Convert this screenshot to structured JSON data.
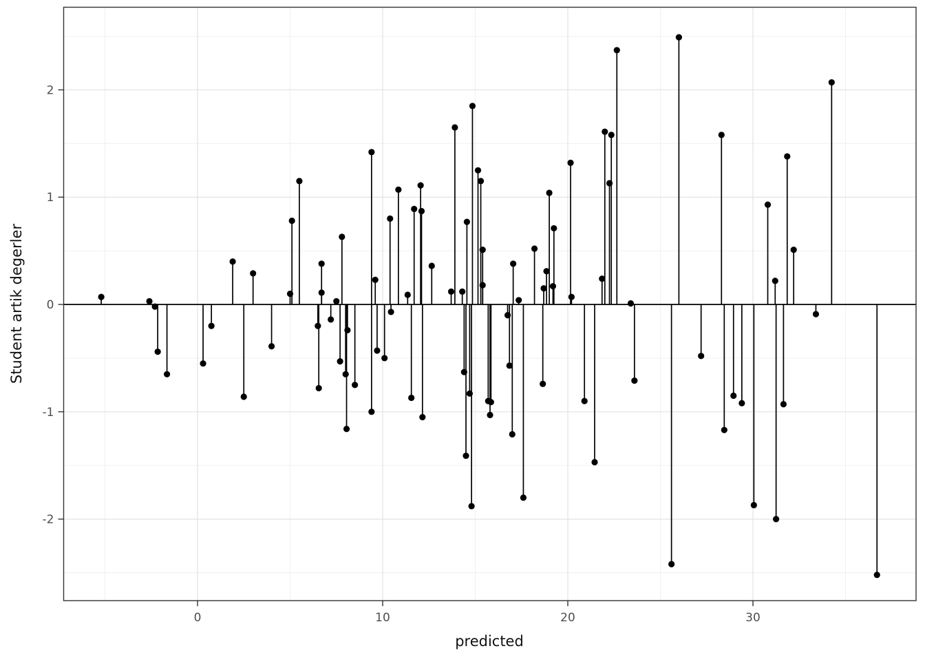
{
  "chart_data": {
    "type": "scatter",
    "subtype": "stem-lollipop-residual-plot",
    "title": "",
    "xlabel": "predicted",
    "ylabel": "Student artik degerler",
    "xlim": [
      -7.23,
      38.81
    ],
    "ylim": [
      -2.76,
      2.77
    ],
    "x_ticks": [
      0,
      10,
      20,
      30
    ],
    "y_ticks": [
      -2,
      -1,
      0,
      1,
      2
    ],
    "x_minor_gridlines": [
      -5,
      5,
      15,
      25,
      35
    ],
    "y_minor_gridlines": [
      -2.5,
      -1.5,
      -0.5,
      0.5,
      1.5,
      2.5
    ],
    "grid": "on",
    "legend": "none",
    "baseline_y": 0,
    "points": [
      [
        -5.2,
        0.07
      ],
      [
        -2.6,
        0.03
      ],
      [
        -2.3,
        -0.02
      ],
      [
        -2.15,
        -0.44
      ],
      [
        -1.65,
        -0.65
      ],
      [
        0.3,
        -0.55
      ],
      [
        0.75,
        -0.2
      ],
      [
        1.9,
        0.4
      ],
      [
        2.5,
        -0.86
      ],
      [
        3.0,
        0.29
      ],
      [
        4.0,
        -0.39
      ],
      [
        5.0,
        0.1
      ],
      [
        5.1,
        0.78
      ],
      [
        5.5,
        1.15
      ],
      [
        6.5,
        -0.2
      ],
      [
        6.55,
        -0.78
      ],
      [
        6.7,
        0.11
      ],
      [
        6.7,
        0.38
      ],
      [
        7.2,
        -0.14
      ],
      [
        7.5,
        0.03
      ],
      [
        7.7,
        -0.53
      ],
      [
        7.8,
        0.63
      ],
      [
        8.0,
        -0.65
      ],
      [
        8.05,
        -1.16
      ],
      [
        8.1,
        -0.24
      ],
      [
        8.5,
        -0.75
      ],
      [
        9.4,
        1.42
      ],
      [
        9.4,
        -1.0
      ],
      [
        9.6,
        0.23
      ],
      [
        9.7,
        -0.43
      ],
      [
        10.1,
        -0.5
      ],
      [
        10.4,
        0.8
      ],
      [
        10.45,
        -0.07
      ],
      [
        10.85,
        1.07
      ],
      [
        11.35,
        0.09
      ],
      [
        11.55,
        -0.87
      ],
      [
        11.7,
        0.89
      ],
      [
        12.05,
        1.11
      ],
      [
        12.1,
        0.87
      ],
      [
        12.15,
        -1.05
      ],
      [
        12.65,
        0.36
      ],
      [
        13.7,
        0.12
      ],
      [
        13.9,
        1.65
      ],
      [
        14.3,
        0.12
      ],
      [
        14.4,
        -0.63
      ],
      [
        14.5,
        -1.41
      ],
      [
        14.55,
        0.77
      ],
      [
        14.7,
        -0.83
      ],
      [
        14.8,
        -1.88
      ],
      [
        14.85,
        1.85
      ],
      [
        15.15,
        1.25
      ],
      [
        15.3,
        1.15
      ],
      [
        15.4,
        0.51
      ],
      [
        15.4,
        0.18
      ],
      [
        15.7,
        -0.9
      ],
      [
        15.8,
        -1.03
      ],
      [
        15.85,
        -0.91
      ],
      [
        16.75,
        -0.1
      ],
      [
        16.85,
        -0.57
      ],
      [
        17.0,
        -1.21
      ],
      [
        17.05,
        0.38
      ],
      [
        17.35,
        0.04
      ],
      [
        17.6,
        -1.8
      ],
      [
        18.2,
        0.52
      ],
      [
        18.65,
        -0.74
      ],
      [
        18.7,
        0.15
      ],
      [
        18.85,
        0.31
      ],
      [
        19.0,
        1.04
      ],
      [
        19.2,
        0.17
      ],
      [
        19.25,
        0.71
      ],
      [
        20.15,
        1.32
      ],
      [
        20.2,
        0.07
      ],
      [
        20.9,
        -0.9
      ],
      [
        21.45,
        -1.47
      ],
      [
        21.85,
        0.24
      ],
      [
        22.0,
        1.61
      ],
      [
        22.25,
        1.13
      ],
      [
        22.35,
        1.58
      ],
      [
        22.65,
        2.37
      ],
      [
        23.4,
        0.01
      ],
      [
        23.6,
        -0.71
      ],
      [
        25.6,
        -2.42
      ],
      [
        26.0,
        2.49
      ],
      [
        27.2,
        -0.48
      ],
      [
        28.3,
        1.58
      ],
      [
        28.45,
        -1.17
      ],
      [
        28.95,
        -0.85
      ],
      [
        29.4,
        -0.92
      ],
      [
        30.05,
        -1.87
      ],
      [
        30.8,
        0.93
      ],
      [
        31.2,
        0.22
      ],
      [
        31.25,
        -2.0
      ],
      [
        31.65,
        -0.93
      ],
      [
        31.85,
        1.38
      ],
      [
        32.2,
        0.51
      ],
      [
        33.4,
        -0.09
      ],
      [
        34.25,
        2.07
      ],
      [
        36.7,
        -2.52
      ]
    ]
  },
  "style": {
    "point_color": "#000000",
    "stem_color": "#000000",
    "baseline_color": "#000000",
    "grid_major_color": "#e3e3e3",
    "grid_minor_color": "#efefef",
    "panel_border_color": "#333333",
    "tick_mark_color": "#333333",
    "tick_label_color": "#4d4d4d",
    "axis_title_color": "#111111",
    "background": "#ffffff"
  }
}
